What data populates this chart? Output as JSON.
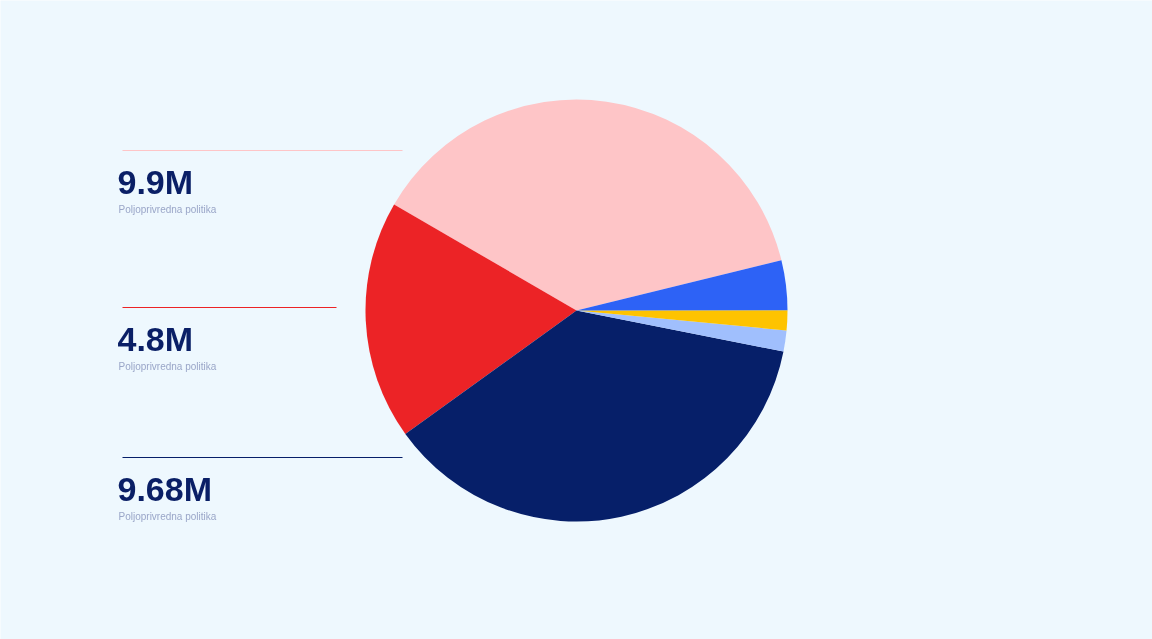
{
  "chart_data": {
    "type": "pie",
    "categories": [
      "Poljoprivredna politika",
      "Poljoprivredna politika",
      "Poljoprivredna politika",
      null,
      null,
      null
    ],
    "values": [
      9.9,
      4.8,
      9.68,
      0.42,
      0.4,
      1.0
    ],
    "colors": [
      "#fec5c7",
      "#ec2326",
      "#061f69",
      "#a0bffd",
      "#fec300",
      "#2d62f6"
    ],
    "value_labels": [
      "9.9M",
      "4.8M",
      "9.68M",
      null,
      null,
      null
    ]
  }
}
